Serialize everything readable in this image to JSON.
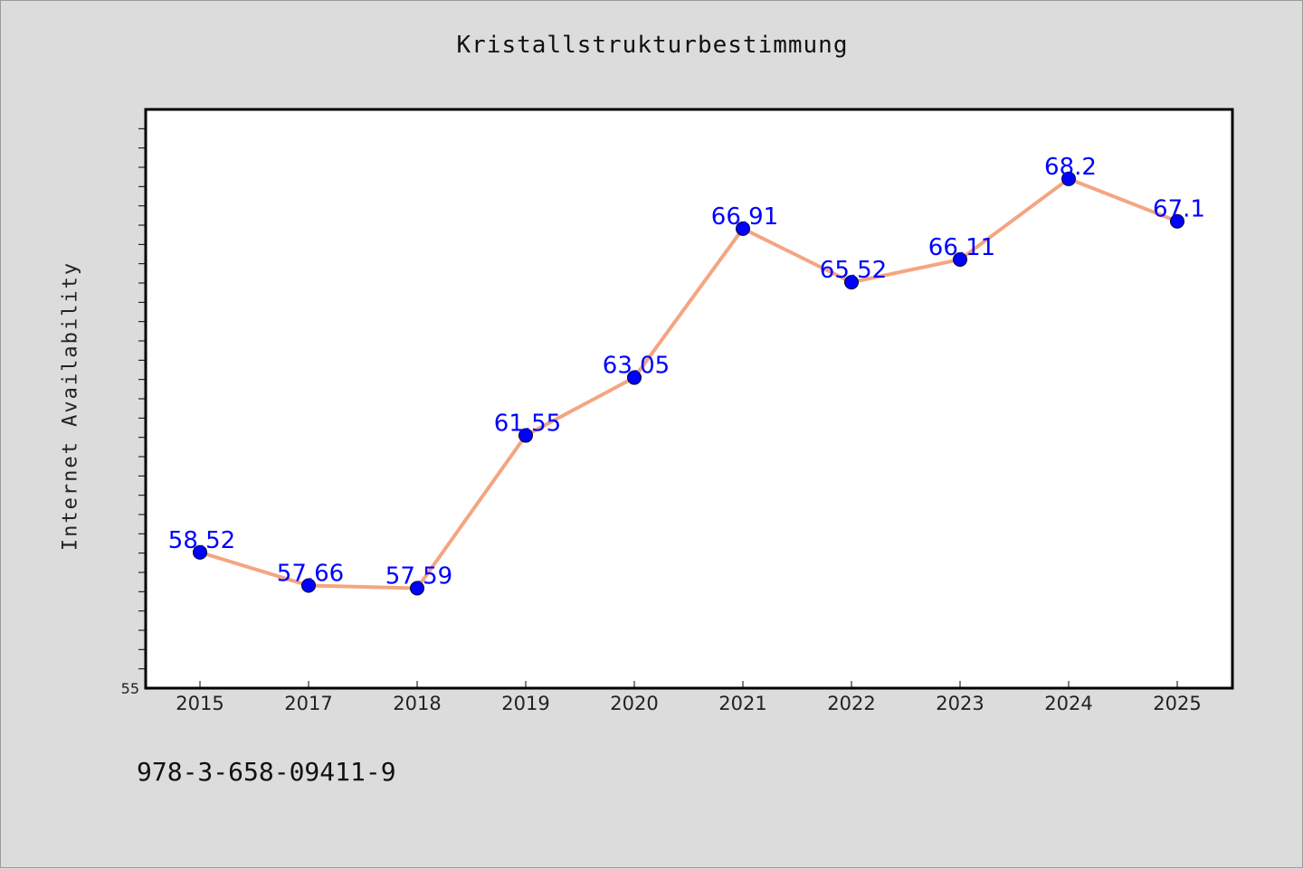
{
  "chart_data": {
    "type": "line",
    "title": "Kristallstrukturbestimmung",
    "xlabel": "",
    "ylabel": "Internet Availability",
    "categories": [
      "2015",
      "2017",
      "2018",
      "2019",
      "2020",
      "2021",
      "2022",
      "2023",
      "2024",
      "2025"
    ],
    "series": [
      {
        "values": [
          58.52,
          57.66,
          57.59,
          61.55,
          63.05,
          66.91,
          65.52,
          66.11,
          68.2,
          67.1
        ],
        "labels": [
          "58.52",
          "57.66",
          "57.59",
          "61.55",
          "63.05",
          "66.91",
          "65.52",
          "66.11",
          "68.2",
          "67.1"
        ]
      }
    ],
    "ylim": [
      55,
      70
    ],
    "y_tick_labels": [
      "55"
    ],
    "grid": false,
    "legend": "none",
    "colors": {
      "line": "#f4a582",
      "marker": "#0000ff",
      "data_label": "#0000ff",
      "plot_background": "#ffffff",
      "figure_background": "#dcdcdc"
    }
  },
  "footnote": "978-3-658-09411-9"
}
